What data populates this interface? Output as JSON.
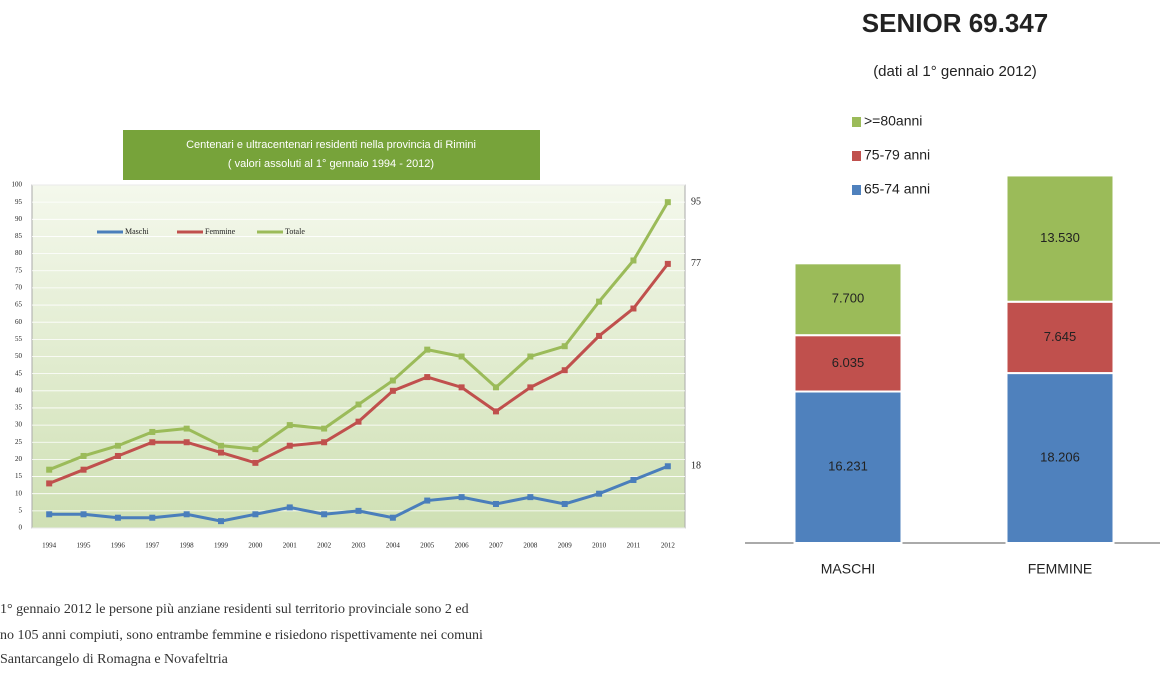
{
  "chart_data": [
    {
      "type": "line",
      "title": "Centenari e ultracentenari residenti nella provincia di Rimini",
      "subtitle": "( valori assoluti al 1° gennaio 1994 - 2012)",
      "categories": [
        "1994",
        "1995",
        "1996",
        "1997",
        "1998",
        "1999",
        "2000",
        "2001",
        "2002",
        "2003",
        "2004",
        "2005",
        "2006",
        "2007",
        "2008",
        "2009",
        "2010",
        "2011",
        "2012"
      ],
      "series": [
        {
          "name": "Maschi",
          "color": "#4a7ebb",
          "values": [
            4,
            4,
            3,
            3,
            4,
            2,
            4,
            6,
            4,
            5,
            3,
            8,
            9,
            7,
            9,
            7,
            10,
            14,
            18
          ]
        },
        {
          "name": "Femmine",
          "color": "#c0504d",
          "values": [
            13,
            17,
            21,
            25,
            25,
            22,
            19,
            24,
            25,
            31,
            40,
            44,
            41,
            34,
            41,
            46,
            56,
            64,
            77
          ]
        },
        {
          "name": "Totale",
          "color": "#9bbb59",
          "values": [
            17,
            21,
            24,
            28,
            29,
            24,
            23,
            30,
            29,
            36,
            43,
            52,
            50,
            41,
            50,
            53,
            66,
            78,
            95
          ]
        }
      ],
      "ylim": [
        0,
        100
      ],
      "yticks": [
        0,
        5,
        10,
        15,
        20,
        25,
        30,
        35,
        40,
        45,
        50,
        55,
        60,
        65,
        70,
        75,
        80,
        85,
        90,
        95,
        100
      ],
      "grid": true
    },
    {
      "type": "stacked_bar",
      "title": "SENIOR 69.347",
      "subtitle": "(dati al 1° gennaio 2012)",
      "categories": [
        "MASCHI",
        "FEMMINE"
      ],
      "series": [
        {
          "name": "65-74 anni",
          "color": "#4f81bd",
          "values": [
            16231,
            18206
          ],
          "value_labels": [
            "16.231",
            "18.206"
          ]
        },
        {
          "name": "75-79 anni",
          "color": "#c0504d",
          "values": [
            6035,
            7645
          ],
          "value_labels": [
            "6.035",
            "7.645"
          ]
        },
        {
          "name": ">=80anni",
          "color": "#9bbb59",
          "values": [
            7700,
            13530
          ],
          "value_labels": [
            "7.700",
            "13.530"
          ]
        }
      ],
      "ylim": [
        0,
        45000
      ]
    }
  ],
  "text": {
    "lines": [
      "1° gennaio 2012 le persone più anziane residenti sul territorio provinciale sono 2 ed",
      "no 105 anni compiuti, sono entrambe femmine e risiedono rispettivamente nei comuni",
      "Santarcangelo di Romagna e Novafeltria"
    ]
  }
}
